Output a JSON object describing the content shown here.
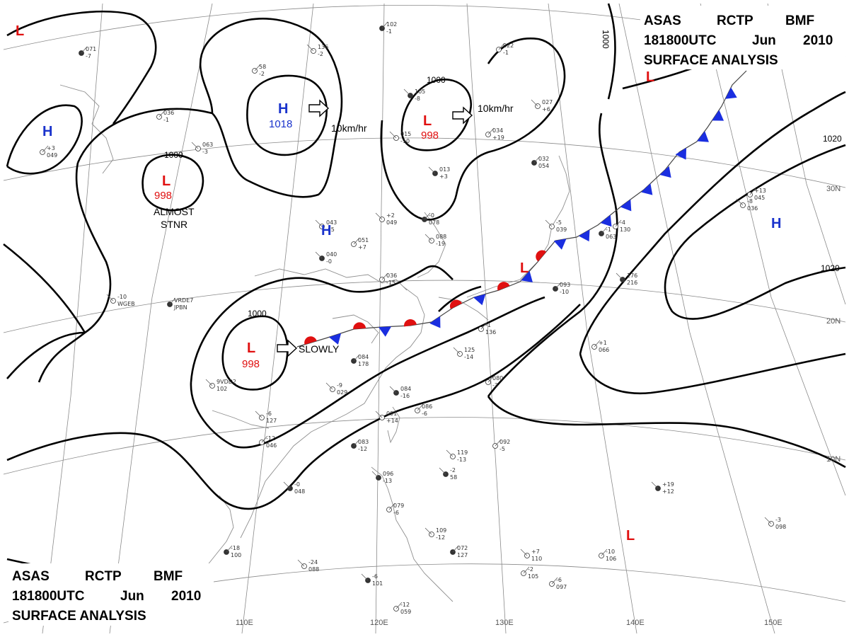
{
  "titles": {
    "top_right": {
      "line1": [
        "ASAS",
        "RCTP",
        "BMF"
      ],
      "line2": [
        "181800UTC",
        "Jun",
        "2010"
      ],
      "line3": "SURFACE ANALYSIS"
    },
    "bottom_left": {
      "line1": [
        "ASAS",
        "RCTP",
        "BMF"
      ],
      "line2": [
        "181800UTC",
        "Jun",
        "2010"
      ],
      "line3": "SURFACE ANALYSIS"
    }
  },
  "colors": {
    "high": "#1a33cc",
    "low": "#e01010",
    "warm_front": "#e01010",
    "cold_front": "#1a2ee0",
    "isobar": "#000000",
    "grid": "#8a8a8a"
  },
  "longitude_labels": [
    "110E",
    "120E",
    "130E",
    "140E",
    "150E"
  ],
  "latitude_labels": [
    "30N",
    "20N",
    "10N"
  ],
  "isobar_labels": [
    "1000",
    "1000",
    "1000",
    "1000",
    "1020",
    "1020"
  ],
  "pressure_centers": [
    {
      "type": "H",
      "value": "1018"
    },
    {
      "type": "L",
      "value": "998"
    },
    {
      "type": "L",
      "value": "998"
    },
    {
      "type": "L",
      "value": "998"
    },
    {
      "type": "H",
      "value": ""
    },
    {
      "type": "H",
      "value": ""
    },
    {
      "type": "H",
      "value": ""
    },
    {
      "type": "L",
      "value": ""
    },
    {
      "type": "L",
      "value": ""
    },
    {
      "type": "L",
      "value": ""
    },
    {
      "type": "L",
      "value": ""
    }
  ],
  "movement_labels": [
    "10km/hr",
    "10km/hr",
    "SLOWLY"
  ],
  "notes": {
    "almost": "ALMOST",
    "stnr": "STNR"
  },
  "stations": [
    "102",
    "-1",
    "136",
    "-2",
    "58",
    "-2",
    "105",
    "-8",
    "036",
    "-1",
    "063",
    "-3",
    "071",
    "-7",
    "015",
    "-10",
    "034",
    "+19",
    "013",
    "+3",
    "022",
    "-1",
    "027",
    "+6",
    "032",
    "054",
    "-5",
    "039",
    "-4",
    "130",
    "176",
    "216",
    "+13",
    "045",
    "+2",
    "049",
    "-0",
    "078",
    "043",
    "+5",
    "051",
    "+7",
    "040",
    "-0",
    "036",
    "-15",
    "088",
    "-19",
    "093",
    "-10",
    "125",
    "-14",
    "080",
    "-3",
    "084",
    "-16",
    "086",
    "-6",
    "091",
    "+14",
    "083",
    "-12",
    "119",
    "-13",
    "092",
    "-5",
    "096",
    "-13",
    "079",
    "-6",
    "109",
    "-12",
    "072",
    "127",
    "+7",
    "110",
    "-10",
    "106",
    "-6",
    "101",
    "-6",
    "097",
    "-3",
    "098",
    "-18",
    "100",
    "-24",
    "088",
    "-12",
    "059",
    "-0",
    "048",
    "-12",
    "046",
    "-9",
    "029",
    "084",
    "178",
    "-6",
    "127",
    "+1",
    "066",
    "+19",
    "+12",
    "+3",
    "049",
    "-10",
    "WGEB",
    "VRDE7",
    "JPBN",
    "9VDD2"
  ]
}
